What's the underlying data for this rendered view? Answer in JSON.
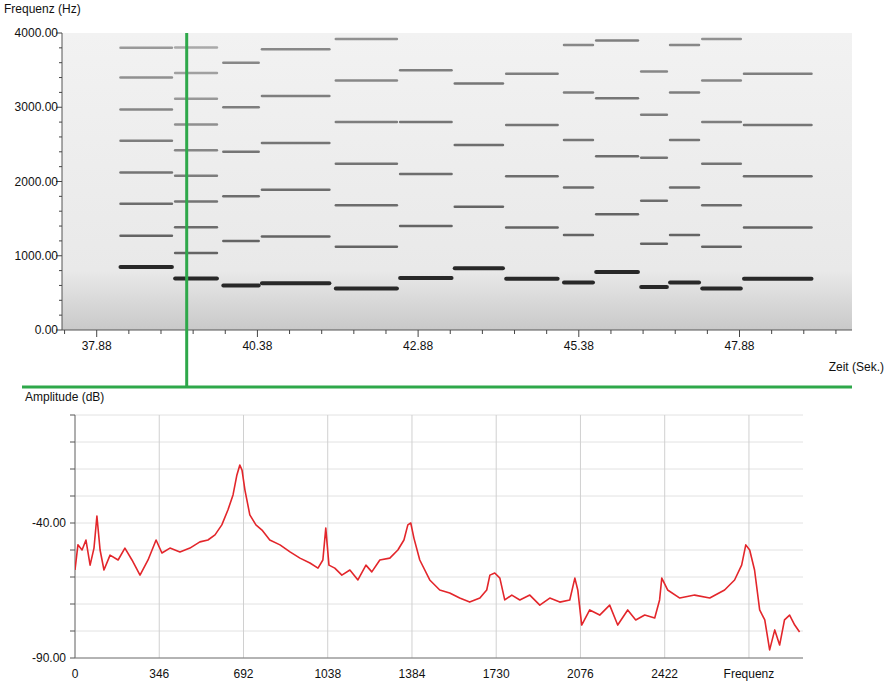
{
  "chart_data": [
    {
      "type": "spectrogram",
      "y_label": "Frequenz (Hz)",
      "x_label": "Zeit (Sek.)",
      "xlim": [
        37.34,
        49.63
      ],
      "ylim": [
        0,
        4000
      ],
      "xticks": [
        37.88,
        40.38,
        42.88,
        45.38,
        47.88
      ],
      "minor_xticks": [
        37.38,
        38.38,
        38.88,
        39.38,
        39.88,
        40.88,
        41.38,
        41.88,
        42.38,
        43.38,
        43.88,
        44.38,
        44.88,
        45.88,
        46.38,
        46.88,
        47.38,
        48.38,
        48.88,
        49.38
      ],
      "yticks": [
        {
          "value": 0,
          "label": "0.00"
        },
        {
          "value": 1000,
          "label": "1000.00"
        },
        {
          "value": 2000,
          "label": "2000.00"
        },
        {
          "value": 3000,
          "label": "3000.00"
        },
        {
          "value": 4000,
          "label": "4000.00"
        }
      ],
      "minor_yticks": [
        200,
        400,
        600,
        800,
        1200,
        1400,
        1600,
        1800,
        2200,
        2400,
        2600,
        2800,
        3200,
        3400,
        3600,
        3800
      ],
      "grid": false,
      "color": "#1e1e1e",
      "cursor": 39.28,
      "notes": [
        {
          "start": 38.25,
          "end": 39.05,
          "partials": [
            850,
            1270,
            1700,
            2120,
            2550,
            2970,
            3400,
            3800
          ]
        },
        {
          "start": 39.1,
          "end": 39.75,
          "partials": [
            692,
            1038,
            1384,
            1730,
            2076,
            2422,
            2768,
            3114,
            3460,
            3806
          ]
        },
        {
          "start": 39.85,
          "end": 40.4,
          "partials": [
            600,
            1200,
            1800,
            2400,
            3000,
            3600
          ]
        },
        {
          "start": 40.45,
          "end": 41.5,
          "partials": [
            630,
            1260,
            1890,
            2520,
            3150,
            3780
          ]
        },
        {
          "start": 41.6,
          "end": 42.55,
          "partials": [
            560,
            1120,
            1680,
            2240,
            2800,
            3360,
            3920
          ]
        },
        {
          "start": 42.6,
          "end": 43.4,
          "partials": [
            700,
            1400,
            2100,
            2800,
            3500
          ]
        },
        {
          "start": 43.45,
          "end": 44.2,
          "partials": [
            830,
            1660,
            2490,
            3320
          ]
        },
        {
          "start": 44.25,
          "end": 45.05,
          "partials": [
            690,
            1380,
            2070,
            2760,
            3450
          ]
        },
        {
          "start": 45.15,
          "end": 45.6,
          "partials": [
            640,
            1280,
            1920,
            2560,
            3200,
            3840
          ]
        },
        {
          "start": 45.65,
          "end": 46.3,
          "partials": [
            780,
            1560,
            2340,
            3120,
            3900
          ]
        },
        {
          "start": 46.35,
          "end": 46.75,
          "partials": [
            580,
            1160,
            1740,
            2320,
            2900,
            3480
          ]
        },
        {
          "start": 46.8,
          "end": 47.25,
          "partials": [
            640,
            1280,
            1920,
            2560,
            3200,
            3840
          ]
        },
        {
          "start": 47.3,
          "end": 47.9,
          "partials": [
            560,
            1120,
            1680,
            2240,
            2800,
            3360,
            3920
          ]
        },
        {
          "start": 47.95,
          "end": 49.0,
          "partials": [
            690,
            1380,
            2070,
            2760,
            3450
          ]
        }
      ]
    },
    {
      "type": "line",
      "y_label": "Amplitude (dB)",
      "xlim": [
        0,
        2990
      ],
      "ylim": [
        -90,
        0
      ],
      "xticks": [
        0,
        346,
        692,
        1038,
        1384,
        1730,
        2076,
        2422,
        {
          "value": 2768,
          "label": "Frequenz"
        }
      ],
      "yticks": [
        {
          "value": -90,
          "label": "-90.00"
        },
        {
          "value": -40,
          "label": "-40.00"
        }
      ],
      "minor_yticks": [
        -80,
        -70,
        -60,
        -50,
        -30,
        -20,
        -10,
        0
      ],
      "grid": true,
      "color": "#e3262b",
      "x": [
        0,
        12,
        29,
        45,
        62,
        78,
        90,
        103,
        119,
        144,
        177,
        205,
        234,
        267,
        300,
        333,
        357,
        390,
        431,
        472,
        513,
        546,
        575,
        603,
        628,
        649,
        665,
        677,
        686,
        698,
        718,
        743,
        768,
        800,
        842,
        883,
        924,
        965,
        998,
        1018,
        1030,
        1043,
        1067,
        1096,
        1129,
        1162,
        1195,
        1219,
        1252,
        1293,
        1326,
        1351,
        1367,
        1379,
        1392,
        1416,
        1457,
        1498,
        1539,
        1580,
        1621,
        1663,
        1691,
        1704,
        1724,
        1745,
        1765,
        1794,
        1827,
        1868,
        1909,
        1950,
        1991,
        2032,
        2053,
        2065,
        2081,
        2114,
        2155,
        2196,
        2229,
        2270,
        2303,
        2340,
        2381,
        2401,
        2410,
        2434,
        2484,
        2545,
        2607,
        2668,
        2709,
        2738,
        2755,
        2771,
        2791,
        2812,
        2833,
        2853,
        2874,
        2894,
        2914,
        2935,
        2956,
        2976
      ],
      "values": [
        -57.4,
        -48.1,
        -50,
        -46.3,
        -55.6,
        -49.3,
        -37.4,
        -50,
        -57.4,
        -51.9,
        -53.7,
        -49.3,
        -53.7,
        -59.3,
        -53.7,
        -46.3,
        -51.1,
        -49.3,
        -50.7,
        -49.3,
        -47,
        -46.3,
        -44.4,
        -40.7,
        -35.2,
        -29.6,
        -22.2,
        -18.5,
        -20.4,
        -27.8,
        -37,
        -40.7,
        -42.6,
        -46.3,
        -48.1,
        -50.7,
        -53,
        -54.8,
        -56.7,
        -53.7,
        -41.9,
        -55.6,
        -56.7,
        -59.3,
        -57.4,
        -61.1,
        -55.6,
        -58.1,
        -53.7,
        -53,
        -50,
        -46.3,
        -40.7,
        -40,
        -45.6,
        -53.7,
        -61.1,
        -64.8,
        -65.9,
        -67.8,
        -69.3,
        -67.8,
        -64.8,
        -59.3,
        -58.5,
        -60.4,
        -68.5,
        -66.7,
        -68.5,
        -66.7,
        -70.4,
        -67.8,
        -69.3,
        -68.5,
        -60.4,
        -64.8,
        -77.8,
        -72.2,
        -74.1,
        -70.4,
        -77.8,
        -72.2,
        -75.9,
        -74.1,
        -75.2,
        -68.5,
        -60.4,
        -64.8,
        -67.8,
        -66.7,
        -67.8,
        -64.8,
        -61.1,
        -55.6,
        -48.1,
        -50,
        -57.4,
        -72.2,
        -75.9,
        -87,
        -79.6,
        -85.2,
        -75.9,
        -74.1,
        -77.8,
        -80.4
      ]
    }
  ]
}
